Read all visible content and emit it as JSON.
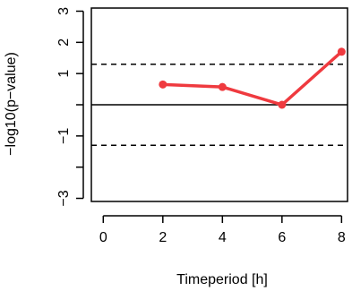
{
  "chart_data": {
    "type": "line",
    "xlabel": "Timeperiod [h]",
    "ylabel": "−log10(p−value)",
    "xlim": [
      -0.4,
      8.2
    ],
    "ylim": [
      -3.1,
      3.1
    ],
    "x_ticks": [
      0,
      2,
      4,
      6,
      8
    ],
    "x_tick_labels": [
      "0",
      "2",
      "4",
      "6",
      "8"
    ],
    "y_ticks": [
      -3,
      -2,
      -1,
      0,
      1,
      2,
      3
    ],
    "y_tick_labels": [
      "−3",
      "",
      "−1",
      "",
      "1",
      "2",
      "3"
    ],
    "grid": false,
    "legend": "none",
    "series": [
      {
        "color": "#ef3a3f",
        "x": [
          2,
          4,
          6,
          8
        ],
        "y": [
          0.65,
          0.57,
          0.0,
          1.7
        ]
      }
    ],
    "reference_lines": [
      {
        "y": 0,
        "style": "solid",
        "color": "#000000"
      },
      {
        "y": 1.3,
        "style": "dashed",
        "color": "#000000"
      },
      {
        "y": -1.3,
        "style": "dashed",
        "color": "#000000"
      }
    ]
  }
}
